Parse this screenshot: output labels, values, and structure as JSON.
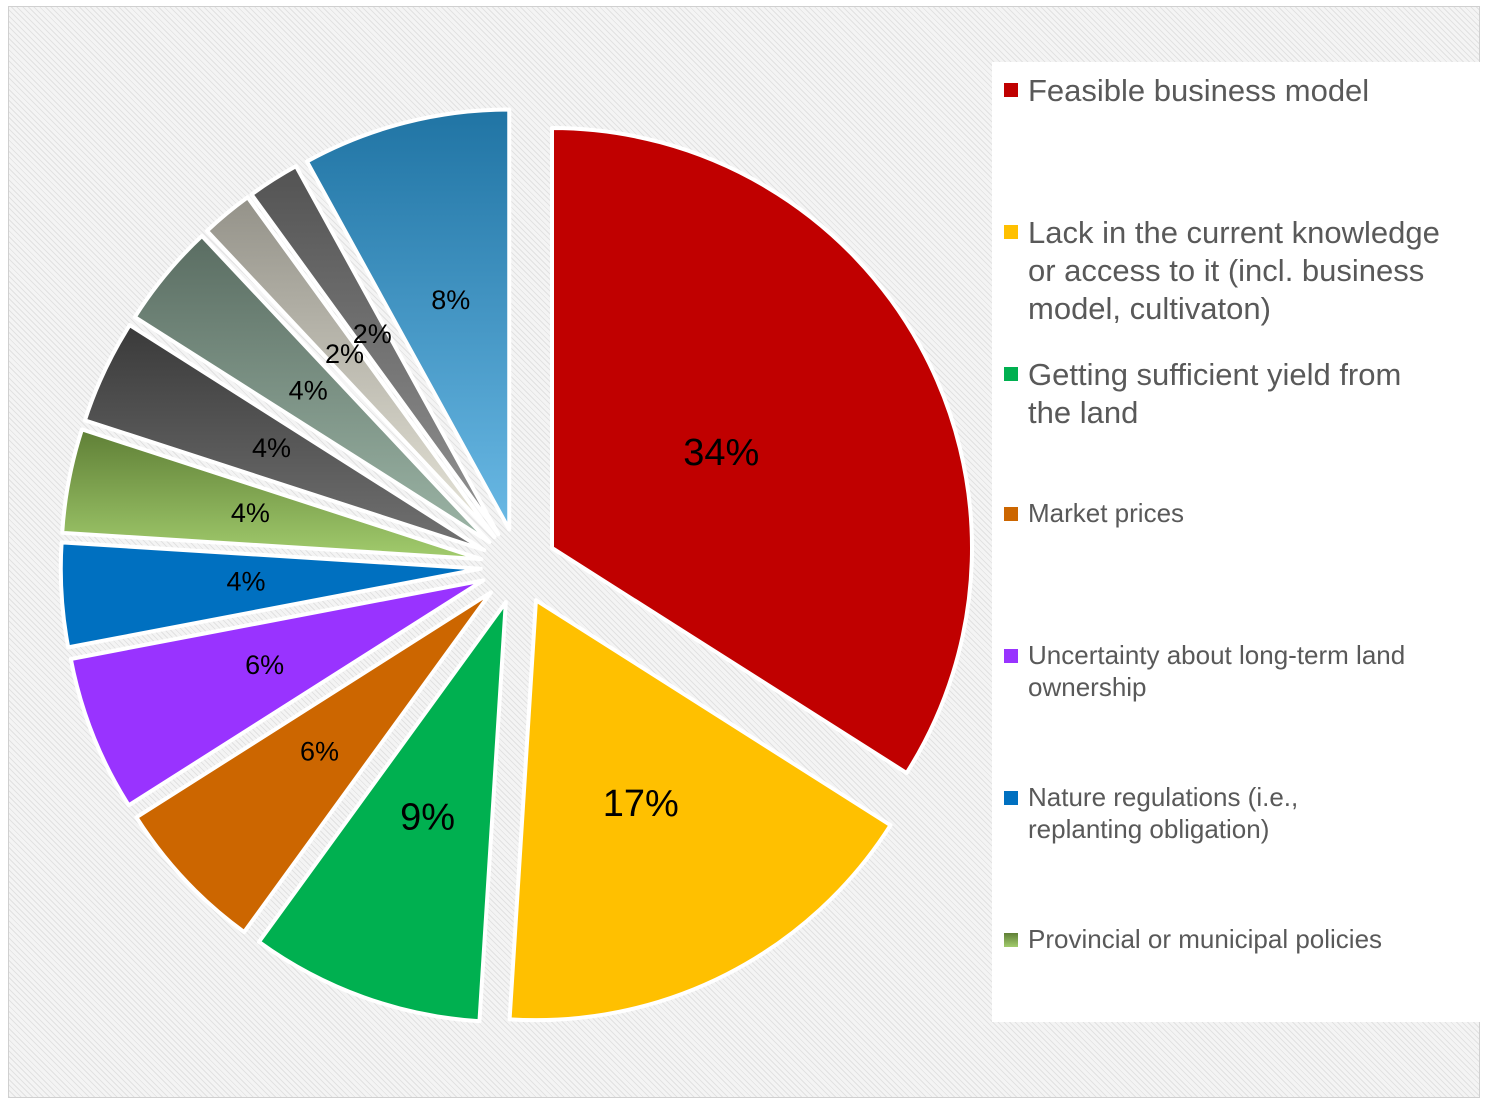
{
  "chart_data": {
    "type": "pie",
    "labels": [
      "Feasible business model",
      "Lack in the current knowledge or access to it (incl. business model, cultivaton)",
      "Getting sufficient yield from the land",
      "Market prices",
      "Uncertainty about long-term land ownership",
      "Nature regulations (i.e., replanting obligation)",
      "Provincial or municipal policies",
      "",
      "",
      "",
      "",
      ""
    ],
    "values": [
      34,
      17,
      9,
      6,
      6,
      4,
      4,
      4,
      4,
      2,
      2,
      8
    ],
    "value_labels": [
      "34%",
      "17%",
      "9%",
      "6%",
      "6%",
      "4%",
      "4%",
      "4%",
      "4%",
      "2%",
      "2%",
      "8%"
    ],
    "colors": [
      "#C00000",
      "#FFC000",
      "#00B050",
      "#CC6600",
      "#9933FF",
      "#0070C0",
      "#92C353",
      "#595959",
      "#8AA896",
      "#E4E1D3",
      "#808080",
      "#2A9BDA"
    ],
    "legend": {
      "placement": "right",
      "entries": [
        "Feasible business model",
        "Lack in the current knowledge or access to it (incl. business model, cultivaton)",
        "Getting sufficient yield from the land",
        "Market prices",
        "Uncertainty about long-term land ownership",
        "Nature regulations (i.e., replanting obligation)",
        "Provincial or municipal policies"
      ]
    }
  },
  "legend_display": [
    {
      "lines": [
        "Feasible business model"
      ],
      "color": "#C00000",
      "size": "big"
    },
    {
      "lines": [
        "Lack in the current knowledge",
        "or access to it (incl. business",
        "model, cultivaton)"
      ],
      "color": "#FFC000",
      "size": "big"
    },
    {
      "lines": [
        "Getting sufficient yield from",
        "the land"
      ],
      "color": "#00B050",
      "size": "big"
    },
    {
      "lines": [
        "Market prices"
      ],
      "color": "#CC6600",
      "size": "small"
    },
    {
      "lines": [
        "Uncertainty about long-term land",
        "ownership"
      ],
      "color": "#9933FF",
      "size": "small"
    },
    {
      "lines": [
        "Nature regulations (i.e.,",
        "replanting obligation)"
      ],
      "color": "#0070C0",
      "size": "small"
    },
    {
      "lines": [
        "Provincial or municipal policies"
      ],
      "color": "#92C353",
      "size": "small"
    }
  ]
}
